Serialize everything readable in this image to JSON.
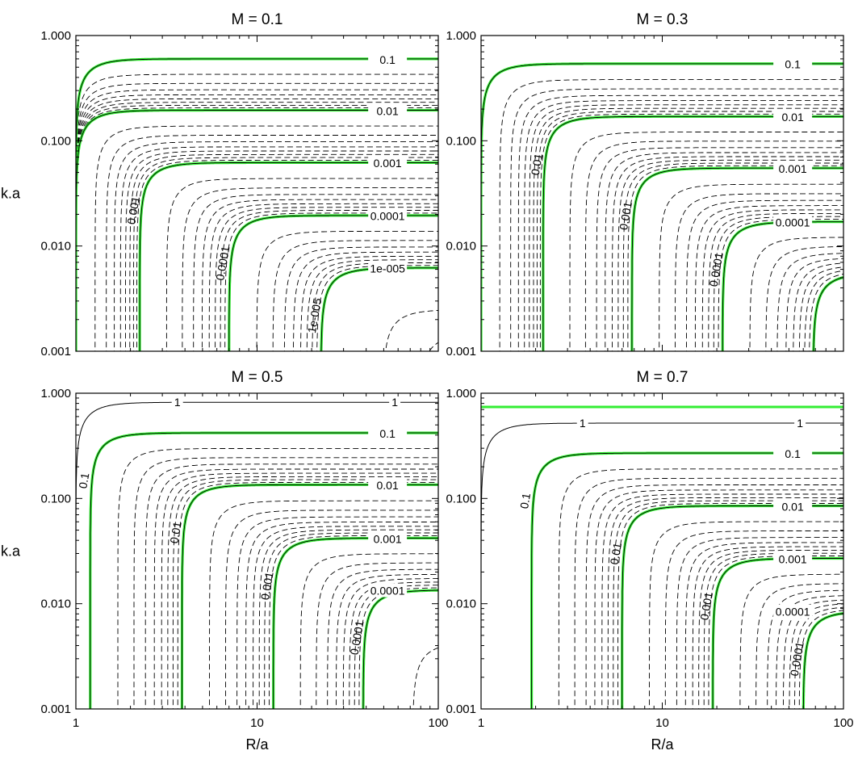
{
  "figure": {
    "xlabel": "R/a",
    "ylabel": "k.a",
    "x_tick_labels": [
      "1",
      "10",
      "100"
    ],
    "y_tick_labels": [
      "0.001",
      "0.010",
      "0.100",
      "1.000"
    ],
    "highlight_color": "#33ee33",
    "contour_color": "#000000"
  },
  "chart_data": [
    {
      "type": "contour",
      "title": "M = 0.1",
      "xlabel": "",
      "ylabel": "k.a",
      "xscale": "log",
      "yscale": "log",
      "xlim": [
        1,
        100
      ],
      "ylim": [
        0.001,
        1
      ],
      "grid": false,
      "highlighted_levels": [
        {
          "label": "0.1",
          "corner_x": 1.0,
          "plateau_y": 0.6
        },
        {
          "label": "0.01",
          "corner_x": 1.0,
          "plateau_y": 0.195
        },
        {
          "label": "0.001",
          "corner_x": 2.25,
          "plateau_y": 0.062
        },
        {
          "label": "0.0001",
          "corner_x": 7.0,
          "plateau_y": 0.0195
        },
        {
          "label": "1e-005",
          "corner_x": 22.5,
          "plateau_y": 0.0062
        }
      ]
    },
    {
      "type": "contour",
      "title": "M = 0.3",
      "xlabel": "",
      "ylabel": "",
      "xscale": "log",
      "yscale": "log",
      "xlim": [
        1,
        100
      ],
      "ylim": [
        0.001,
        1
      ],
      "grid": false,
      "highlighted_levels": [
        {
          "label": "0.1",
          "corner_x": 1.0,
          "plateau_y": 0.54
        },
        {
          "label": "0.01",
          "corner_x": 2.2,
          "plateau_y": 0.17
        },
        {
          "label": "0.001",
          "corner_x": 6.8,
          "plateau_y": 0.055
        },
        {
          "label": "0.0001",
          "corner_x": 21.5,
          "plateau_y": 0.017
        },
        {
          "label": "",
          "corner_x": 68.0,
          "plateau_y": 0.0055
        }
      ]
    },
    {
      "type": "contour",
      "title": "M = 0.5",
      "xlabel": "R/a",
      "ylabel": "k.a",
      "xscale": "log",
      "yscale": "log",
      "xlim": [
        1,
        100
      ],
      "ylim": [
        0.001,
        1
      ],
      "grid": false,
      "thin_levels": [
        {
          "label": "1",
          "y": 0.82
        }
      ],
      "highlighted_levels": [
        {
          "label": "0.1",
          "corner_x": 1.2,
          "plateau_y": 0.42
        },
        {
          "label": "0.01",
          "corner_x": 3.85,
          "plateau_y": 0.135
        },
        {
          "label": "0.001",
          "corner_x": 12.3,
          "plateau_y": 0.042
        },
        {
          "label": "0.0001",
          "corner_x": 38.5,
          "plateau_y": 0.0135
        }
      ]
    },
    {
      "type": "contour",
      "title": "M = 0.7",
      "xlabel": "R/a",
      "ylabel": "",
      "xscale": "log",
      "yscale": "log",
      "xlim": [
        1,
        100
      ],
      "ylim": [
        0.001,
        1
      ],
      "grid": false,
      "thin_levels": [
        {
          "label": "1",
          "y": 0.52
        }
      ],
      "green_line_y": 0.74,
      "highlighted_levels": [
        {
          "label": "0.1",
          "corner_x": 1.9,
          "plateau_y": 0.27
        },
        {
          "label": "0.01",
          "corner_x": 6.0,
          "plateau_y": 0.085
        },
        {
          "label": "0.001",
          "corner_x": 19.0,
          "plateau_y": 0.027
        },
        {
          "label": "0.0001",
          "corner_x": 60.0,
          "plateau_y": 0.0085
        }
      ]
    }
  ]
}
